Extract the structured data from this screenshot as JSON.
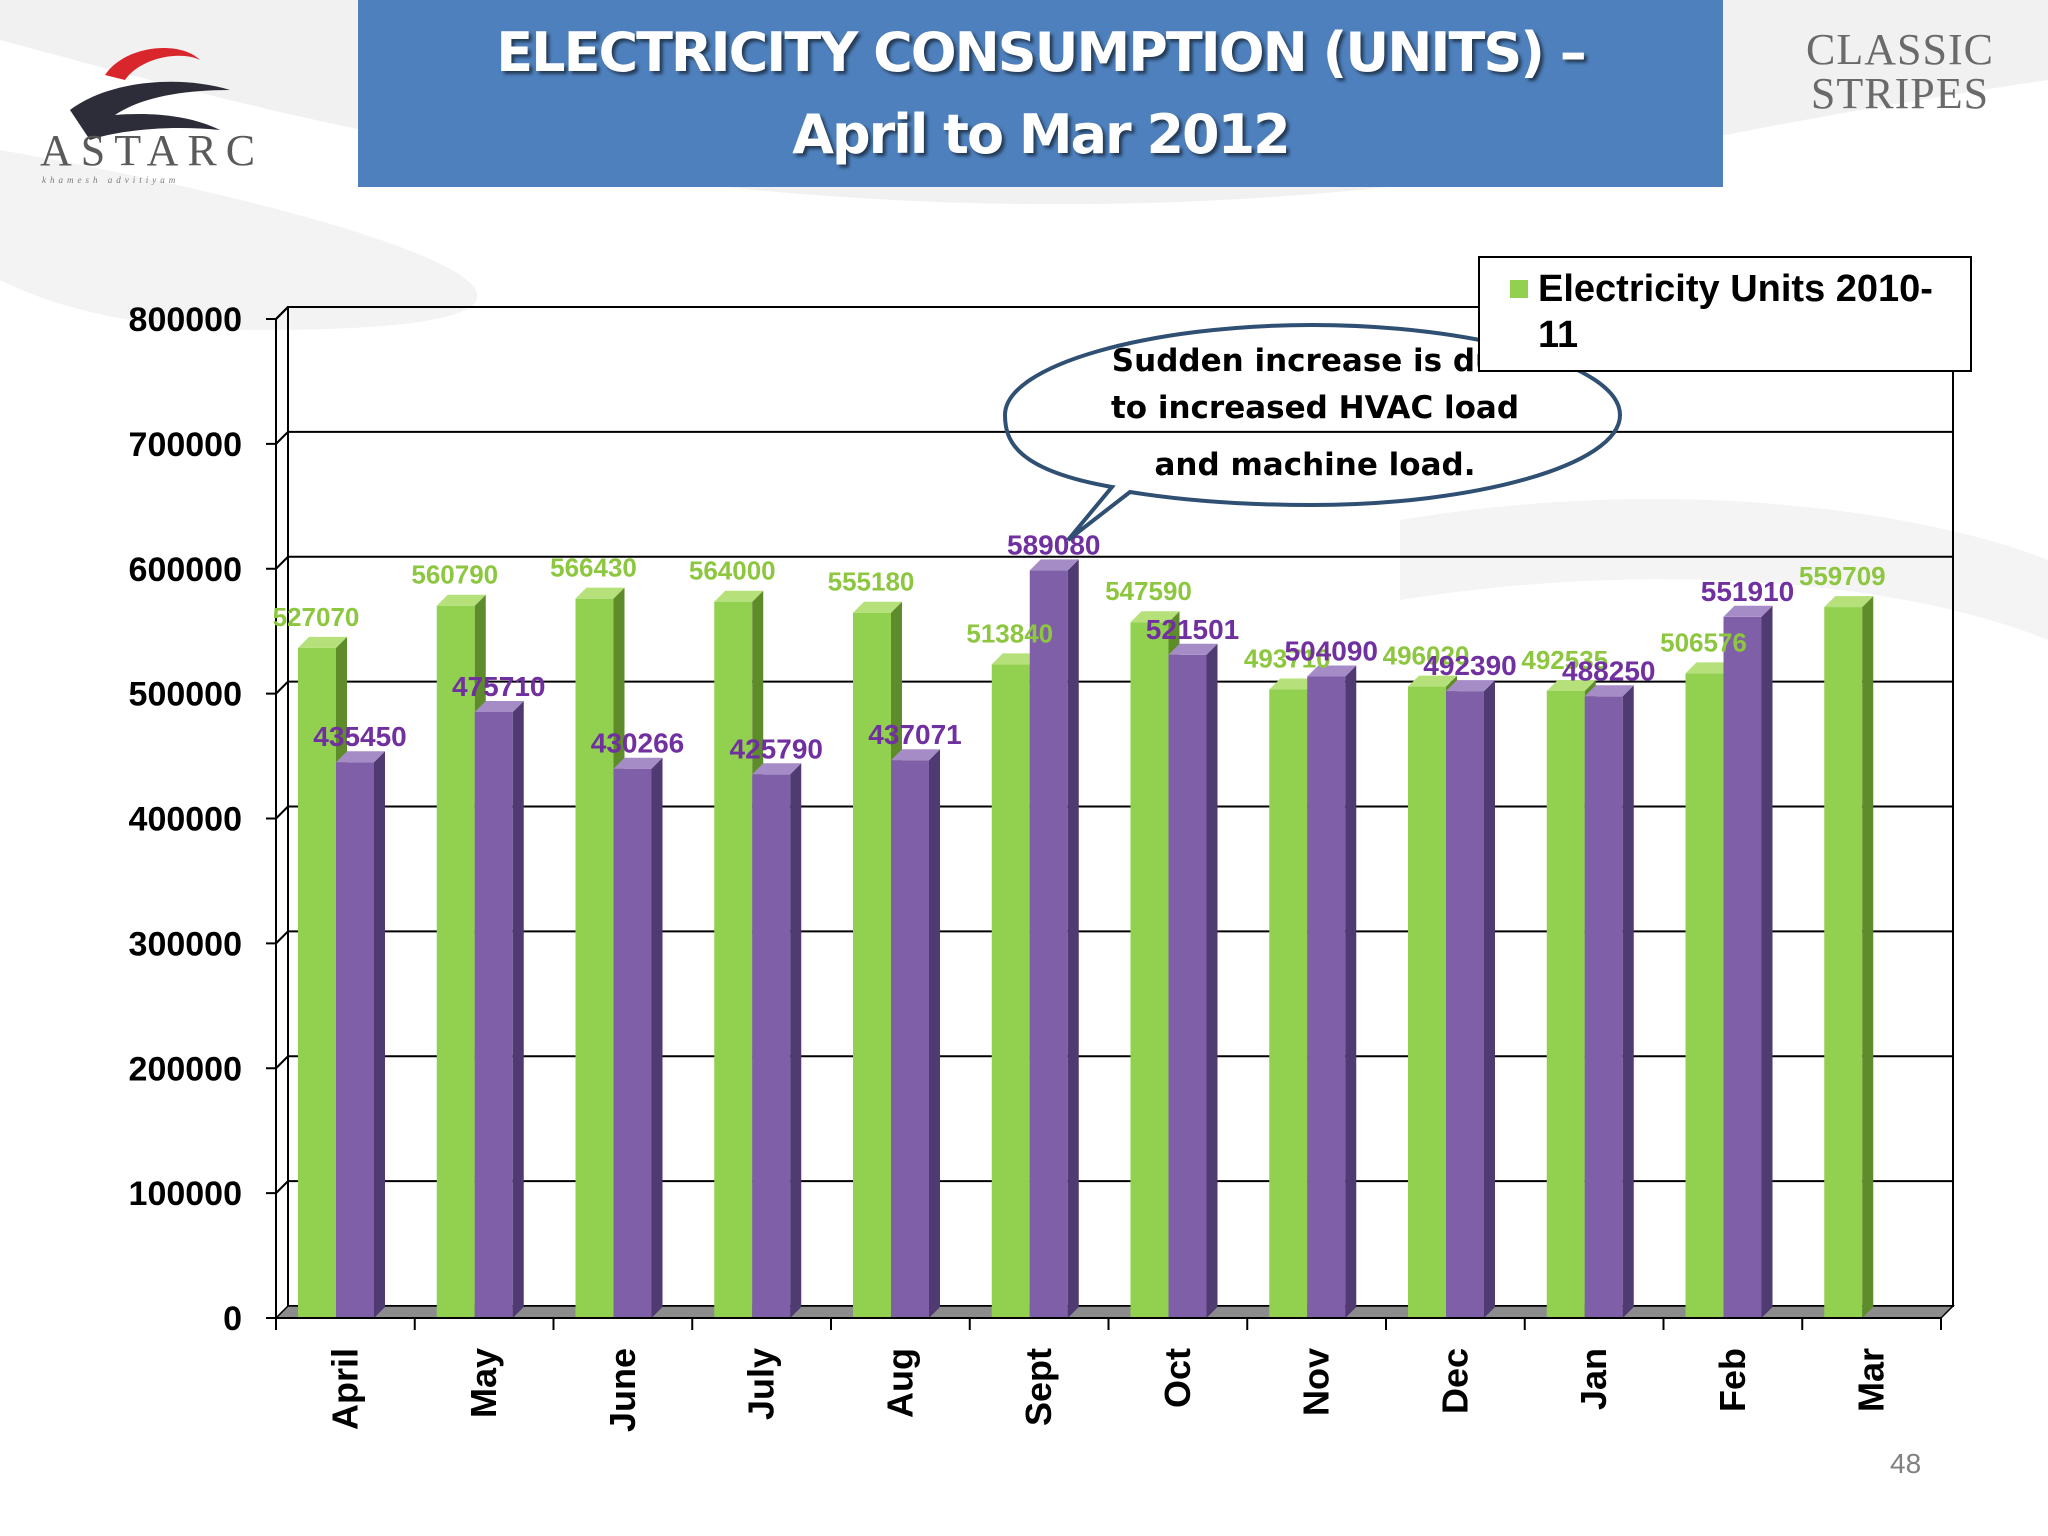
{
  "title": {
    "line1": "ELECTRICITY CONSUMPTION (UNITS) –",
    "line2": "April to Mar 2012"
  },
  "logos": {
    "left": {
      "name": "ASTARC",
      "tagline": "khamesh advitiyam"
    },
    "right": {
      "line1": "CLASSIC",
      "line2": "STRIPES"
    }
  },
  "page_number": "48",
  "callout": {
    "line1": "Sudden increase is due",
    "line2": "to increased HVAC load",
    "line3": "and machine load."
  },
  "colors": {
    "series1": "#92d050",
    "series2": "#7f5fa7",
    "label1": "#8dc63f",
    "label2": "#7030a0",
    "banner": "#4e80bd"
  },
  "chart_data": {
    "type": "bar",
    "style": "3d clustered column",
    "categories": [
      "April",
      "May",
      "June",
      "July",
      "Aug",
      "Sept",
      "Oct",
      "Nov",
      "Dec",
      "Jan",
      "Feb",
      "Mar"
    ],
    "series": [
      {
        "name": "Electricity Units 2010-11",
        "values": [
          527070,
          560790,
          566430,
          564000,
          555180,
          513840,
          547590,
          493710,
          496020,
          492535,
          506576,
          559709
        ]
      },
      {
        "values": [
          435450,
          475710,
          430266,
          425790,
          437071,
          589080,
          521501,
          504090,
          492390,
          488250,
          551910,
          null
        ]
      }
    ],
    "y_ticks": [
      "0",
      "100000",
      "200000",
      "300000",
      "400000",
      "500000",
      "600000",
      "700000",
      "800000"
    ],
    "ylim": [
      0,
      800000
    ],
    "grid": true,
    "legend": "top-right"
  }
}
